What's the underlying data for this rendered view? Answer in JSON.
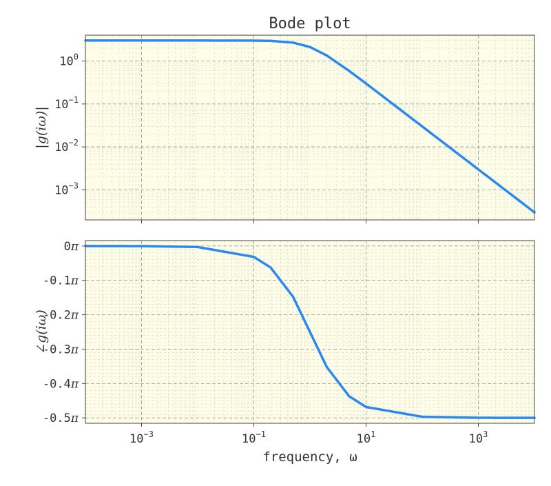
{
  "chart_data": [
    {
      "type": "line",
      "panel": "magnitude",
      "title": "Bode plot",
      "xlabel": "",
      "ylabel": "|g(iω)|",
      "xscale": "log",
      "yscale": "log",
      "xlim": [
        0.0001,
        10000
      ],
      "ylim": [
        0.0002,
        4
      ],
      "x_ticks": [
        "10^-3",
        "10^-1",
        "10^1",
        "10^3"
      ],
      "y_ticks": [
        "10^0",
        "10^-1",
        "10^-2",
        "10^-3"
      ],
      "grid": true,
      "series": [
        {
          "color": "#2a88ee",
          "x": [
            0.0001,
            0.001,
            0.01,
            0.1,
            0.2,
            0.5,
            1,
            2,
            5,
            10,
            100,
            1000,
            10000
          ],
          "y": [
            3.0,
            3.0,
            3.0,
            2.985,
            2.942,
            2.683,
            2.121,
            1.342,
            0.588,
            0.299,
            0.03,
            0.003,
            0.0003
          ]
        }
      ]
    },
    {
      "type": "line",
      "panel": "phase",
      "xlabel": "frequency, ω",
      "ylabel": "∠g(iω)",
      "xscale": "log",
      "yscale": "linear",
      "xlim": [
        0.0001,
        10000
      ],
      "ylim": [
        -0.5157,
        0.0157
      ],
      "x_ticks": [
        "10^-3",
        "10^-1",
        "10^1",
        "10^3"
      ],
      "y_ticks": [
        "0π",
        "-0.1π",
        "-0.2π",
        "-0.3π",
        "-0.4π",
        "-0.5π"
      ],
      "y_unit": "π rad",
      "grid": true,
      "series": [
        {
          "color": "#2a88ee",
          "x": [
            0.0001,
            0.001,
            0.01,
            0.1,
            0.2,
            0.5,
            1,
            2,
            5,
            10,
            100,
            1000,
            10000
          ],
          "y": [
            0.0,
            -0.0003,
            -0.003,
            -0.0317,
            -0.0628,
            -0.1476,
            -0.25,
            -0.3524,
            -0.4372,
            -0.4683,
            -0.4968,
            -0.4997,
            -0.5
          ]
        }
      ]
    }
  ]
}
